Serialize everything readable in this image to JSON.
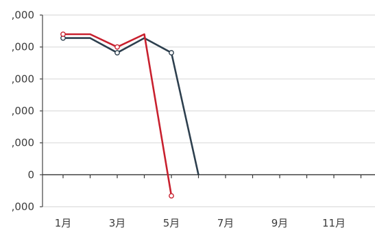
{
  "chart_data": {
    "type": "line",
    "y_tick_labels": [
      ",000",
      ",000",
      ",000",
      ",000",
      ",000",
      "0",
      ",000"
    ],
    "x_tick_labels": [
      "1月",
      "3月",
      "5月",
      "7月",
      "9月",
      "11月"
    ],
    "x_months": [
      1,
      2,
      3,
      4,
      5,
      6,
      7,
      8,
      9,
      10,
      11,
      12
    ],
    "x_tick_months": [
      1,
      3,
      5,
      7,
      9,
      11
    ],
    "ylim": [
      -1,
      5
    ],
    "grid": true,
    "legend": "none",
    "series": [
      {
        "color": "#2d3f4e",
        "x": [
          1,
          2,
          3,
          4,
          5,
          6
        ],
        "values": [
          4.28,
          4.28,
          3.82,
          4.28,
          3.82,
          0
        ],
        "markers": [
          1,
          3,
          5
        ]
      },
      {
        "color": "#c8202e",
        "x": [
          1,
          2,
          3,
          4,
          5
        ],
        "values": [
          4.4,
          4.4,
          4.0,
          4.4,
          -0.66
        ],
        "markers": [
          1,
          3,
          5
        ]
      }
    ]
  }
}
